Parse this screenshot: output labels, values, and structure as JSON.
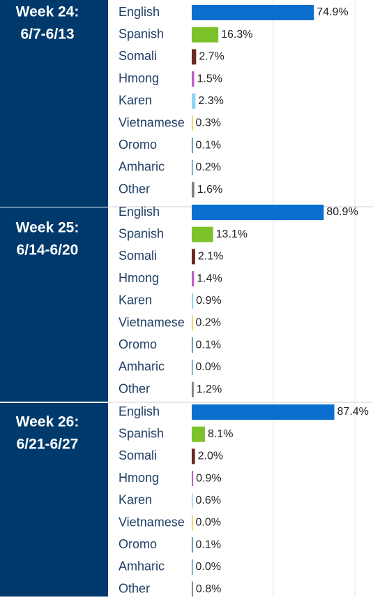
{
  "chart_data": [
    {
      "type": "bar",
      "orientation": "horizontal",
      "title": "Week 24:",
      "subtitle": "6/7-6/13",
      "categories": [
        "English",
        "Spanish",
        "Somali",
        "Hmong",
        "Karen",
        "Vietnamese",
        "Oromo",
        "Amharic",
        "Other"
      ],
      "values": [
        74.9,
        16.3,
        2.7,
        1.5,
        2.3,
        0.3,
        0.1,
        0.2,
        1.6
      ],
      "value_labels": [
        "74.9%",
        "16.3%",
        "2.7%",
        "1.5%",
        "2.3%",
        "0.3%",
        "0.1%",
        "0.2%",
        "1.6%"
      ],
      "colors": [
        "#0a6fcf",
        "#7cc22a",
        "#6b2a20",
        "#c05cc8",
        "#8fd4f4",
        "#f2c037",
        "#2e6f8e",
        "#3a9ab0",
        "#7f7f7f"
      ],
      "xlim": [
        0,
        100
      ],
      "xticks": [
        0,
        50,
        100
      ],
      "grid": true
    },
    {
      "type": "bar",
      "orientation": "horizontal",
      "title": "Week 25:",
      "subtitle": "6/14-6/20",
      "categories": [
        "English",
        "Spanish",
        "Somali",
        "Hmong",
        "Karen",
        "Vietnamese",
        "Oromo",
        "Amharic",
        "Other"
      ],
      "values": [
        80.9,
        13.1,
        2.1,
        1.4,
        0.9,
        0.2,
        0.1,
        0.0,
        1.2
      ],
      "value_labels": [
        "80.9%",
        "13.1%",
        "2.1%",
        "1.4%",
        "0.9%",
        "0.2%",
        "0.1%",
        "0.0%",
        "1.2%"
      ],
      "colors": [
        "#0a6fcf",
        "#7cc22a",
        "#6b2a20",
        "#c05cc8",
        "#8fd4f4",
        "#f2c037",
        "#2e6f8e",
        "#3a9ab0",
        "#7f7f7f"
      ],
      "xlim": [
        0,
        100
      ],
      "xticks": [
        0,
        50,
        100
      ],
      "grid": true
    },
    {
      "type": "bar",
      "orientation": "horizontal",
      "title": "Week 26:",
      "subtitle": "6/21-6/27",
      "categories": [
        "English",
        "Spanish",
        "Somali",
        "Hmong",
        "Karen",
        "Vietnamese",
        "Oromo",
        "Amharic",
        "Other"
      ],
      "values": [
        87.4,
        8.1,
        2.0,
        0.9,
        0.6,
        0.0,
        0.1,
        0.0,
        0.8
      ],
      "value_labels": [
        "87.4%",
        "8.1%",
        "2.0%",
        "0.9%",
        "0.6%",
        "0.0%",
        "0.1%",
        "0.0%",
        "0.8%"
      ],
      "colors": [
        "#0a6fcf",
        "#7cc22a",
        "#6b2a20",
        "#c05cc8",
        "#8fd4f4",
        "#f2c037",
        "#2e6f8e",
        "#3a9ab0",
        "#7f7f7f"
      ],
      "xlim": [
        0,
        100
      ],
      "xticks": [
        0,
        50,
        100
      ],
      "grid": true
    }
  ]
}
